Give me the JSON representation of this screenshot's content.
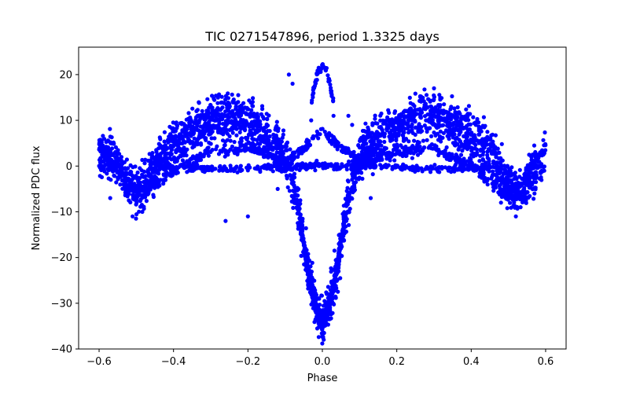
{
  "chart_data": {
    "type": "scatter",
    "title": "TIC 0271547896, period 1.3325 days",
    "xlabel": "Phase",
    "ylabel": "Normalized PDC flux",
    "xlim": [
      -0.655,
      0.655
    ],
    "ylim": [
      -40,
      26
    ],
    "xticks": [
      -0.6,
      -0.4,
      -0.2,
      0.0,
      0.2,
      0.4,
      0.6
    ],
    "xtick_labels": [
      "−0.6",
      "−0.4",
      "−0.2",
      "0.0",
      "0.2",
      "0.4",
      "0.6"
    ],
    "yticks": [
      20,
      10,
      0,
      -10,
      -20,
      -30,
      -40
    ],
    "ytick_labels": [
      "20",
      "10",
      "0",
      "−10",
      "−20",
      "−30",
      "−40"
    ],
    "grid": false,
    "marker_color": "#0000ff",
    "series": [
      {
        "name": "PDC flux",
        "description_points": {
          "x": [
            -0.6,
            -0.58,
            -0.55,
            -0.52,
            -0.5,
            -0.47,
            -0.44,
            -0.4,
            -0.36,
            -0.32,
            -0.28,
            -0.25,
            -0.22,
            -0.18,
            -0.14,
            -0.12,
            -0.1,
            -0.08,
            -0.06,
            -0.04,
            -0.02,
            0.0,
            0.02,
            0.04,
            0.06,
            0.08,
            0.1,
            0.12,
            0.16,
            0.2,
            0.24,
            0.28,
            0.3,
            0.34,
            0.38,
            0.42,
            0.46,
            0.5,
            0.53,
            0.56,
            0.58,
            0.6
          ],
          "y": [
            2,
            3,
            0,
            -4,
            -6,
            -3,
            1,
            4,
            7,
            9,
            10,
            11,
            10,
            8,
            6,
            4,
            2,
            -3,
            -12,
            -22,
            -30,
            -35,
            -30,
            -22,
            -12,
            -3,
            2,
            4,
            6,
            8,
            10,
            11,
            11,
            10,
            8,
            6,
            2,
            -4,
            -6,
            -3,
            0,
            3
          ]
        }
      }
    ],
    "secondary_branch": {
      "x": [
        -0.6,
        -0.5,
        -0.4,
        -0.3,
        -0.2,
        -0.1,
        -0.05,
        0.0,
        0.05,
        0.1,
        0.2,
        0.3,
        0.4,
        0.5,
        0.6
      ],
      "y": [
        4,
        -7,
        -1,
        3,
        4,
        1,
        4,
        8,
        4,
        1,
        3,
        4,
        0,
        -7,
        4
      ]
    },
    "flat_branch": {
      "x": [
        -0.45,
        -0.35,
        -0.25,
        -0.15,
        -0.05,
        0.05,
        0.15,
        0.25,
        0.35,
        0.45
      ],
      "y": [
        0,
        -0.5,
        -0.5,
        -0.5,
        0,
        0,
        0,
        -0.5,
        -0.5,
        0
      ]
    },
    "peak_branch": {
      "x": [
        -0.03,
        -0.02,
        -0.01,
        0.0,
        0.01,
        0.02,
        0.03
      ],
      "y": [
        14,
        18,
        21,
        22,
        21,
        18,
        14
      ]
    },
    "outliers": {
      "x": [
        -0.57,
        -0.51,
        -0.26,
        -0.2,
        -0.12,
        -0.09,
        -0.08,
        -0.03,
        0.03,
        0.07,
        0.08,
        0.13,
        0.3,
        0.48,
        0.52
      ],
      "y": [
        -7,
        -11,
        -12,
        -11,
        -5,
        20,
        18,
        10,
        11,
        11,
        9,
        -7,
        17,
        -8,
        -11
      ]
    }
  }
}
